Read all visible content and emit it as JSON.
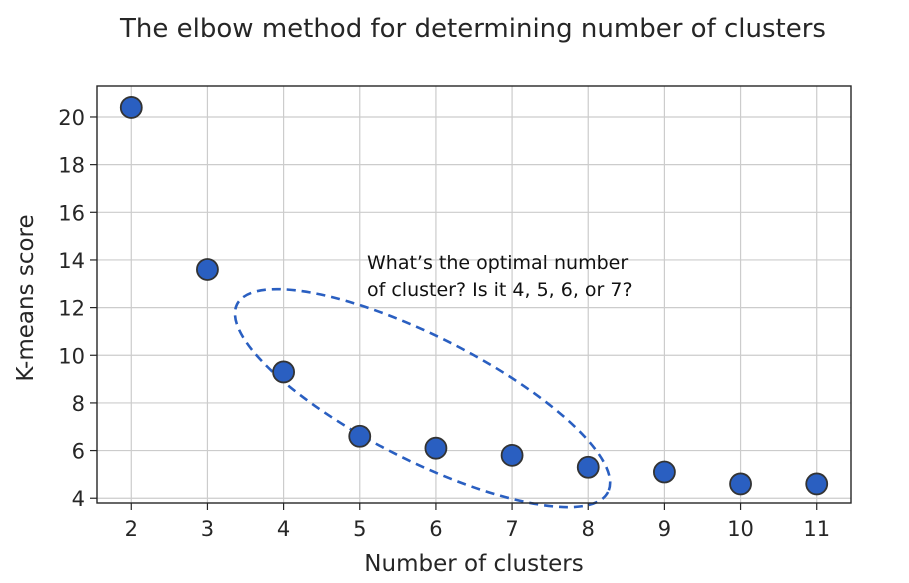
{
  "chart_data": {
    "type": "scatter",
    "title": "The elbow method for determining number of clusters",
    "xlabel": "Number of clusters",
    "ylabel": "K-means score",
    "x": [
      2,
      3,
      4,
      5,
      6,
      7,
      8,
      9,
      10,
      11
    ],
    "y": [
      20.4,
      13.6,
      9.3,
      6.6,
      6.1,
      5.8,
      5.3,
      5.1,
      4.6,
      4.6
    ],
    "xlim": [
      1.55,
      11.45
    ],
    "ylim": [
      3.8,
      21.3
    ],
    "xticks": [
      2,
      3,
      4,
      5,
      6,
      7,
      8,
      9,
      10,
      11
    ],
    "yticks": [
      4,
      6,
      8,
      10,
      12,
      14,
      16,
      18,
      20
    ],
    "grid": true,
    "marker_color": "#2a5fc1",
    "marker_edge_color": "#333333",
    "annotation": {
      "lines": [
        "What’s the optimal number",
        "of cluster? Is it 4, 5, 6, or 7?"
      ],
      "highlight_color": "#2a5fc1"
    }
  }
}
